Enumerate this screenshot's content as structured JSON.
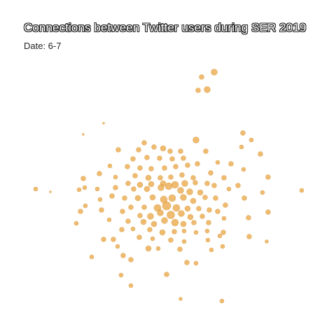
{
  "header": {
    "title": "Connections between Twitter users during SER 2019",
    "subtitle": "Date: 6-7"
  },
  "colors": {
    "node_fill": "#E8A13A",
    "node_stroke": "#D48A1E",
    "background": "#FFFFFF"
  }
}
